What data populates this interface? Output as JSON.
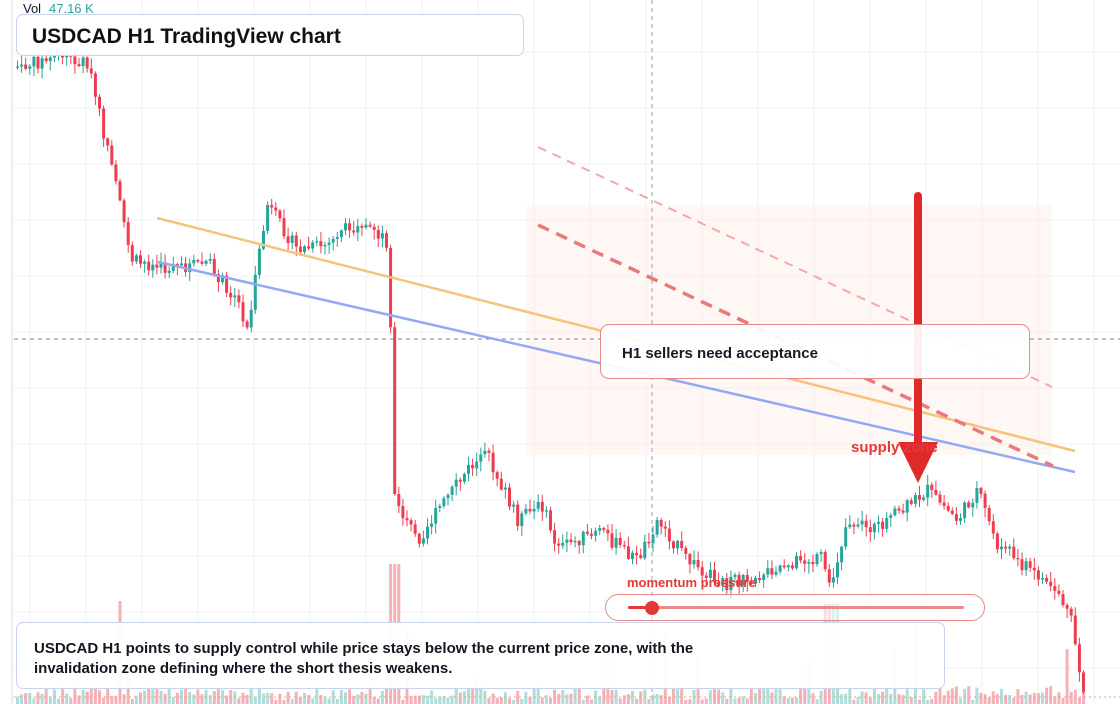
{
  "colors": {
    "up": "#26a69a",
    "down": "#ef3d50",
    "orange_line": "#f7c37a",
    "blue_line": "#93a9f3",
    "accent_red": "#e23a3a"
  },
  "header": {
    "vol_label": "Vol",
    "vol_value": "47.16 K"
  },
  "title": "USDCAD H1 TradingView chart",
  "annotation": {
    "text": "H1 sellers need acceptance"
  },
  "supply_label": "supply zone",
  "momentum": {
    "label": "momentum pressure",
    "level": 0.07
  },
  "caption": "USDCAD H1 points to supply control while price stays below the current price zone, with the invalidation zone defining where the short thesis weakens.",
  "chart_data": {
    "type": "candlestick",
    "symbol": "USDCAD",
    "timeframe": "H1",
    "volume_last": "47.16 K",
    "grid": true,
    "crosshair": true,
    "trend": "down",
    "price_axis_visible": false,
    "time_axis_visible": false,
    "overlays": [
      "orange trendline",
      "blue trendline",
      "dashed red channel",
      "supply zone box",
      "down arrow"
    ]
  }
}
